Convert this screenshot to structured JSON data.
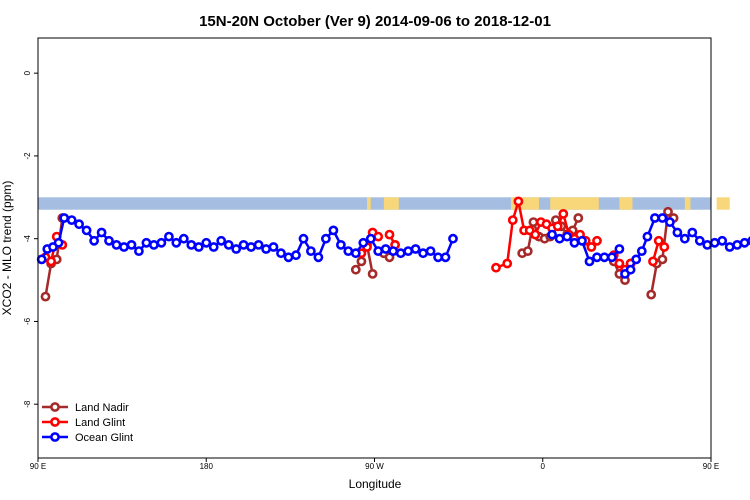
{
  "chart_data": {
    "type": "line",
    "title": "15N-20N October (Ver 9)   2014-09-06 to 2018-12-01",
    "xlabel": "Longitude",
    "ylabel": "XCO2 - MLO trend (ppm)",
    "xlim": [
      90,
      450
    ],
    "ylim": [
      -9.3,
      0.85
    ],
    "x_ticks": [
      {
        "value": 90,
        "label": "90 E"
      },
      {
        "value": 180,
        "label": "180"
      },
      {
        "value": 270,
        "label": "90 W"
      },
      {
        "value": 360,
        "label": "0"
      },
      {
        "value": 450,
        "label": "90 E"
      },
      {
        "value": 540,
        "label": "180"
      }
    ],
    "y_ticks": [
      {
        "value": 0,
        "label": "0"
      },
      {
        "value": -2,
        "label": "-2"
      },
      {
        "value": -4,
        "label": "-4"
      },
      {
        "value": -6,
        "label": "-6"
      },
      {
        "value": -8,
        "label": "-8"
      }
    ],
    "grid": false,
    "legend_position": "bottom-left",
    "map_strip": {
      "y_range": [
        -3.3,
        -3.0
      ],
      "ocean_color": "#a5bde0",
      "land_color": "#f7d77a",
      "land_spans": [
        [
          266,
          268
        ],
        [
          275,
          283
        ],
        [
          343,
          358
        ],
        [
          364,
          390
        ],
        [
          401,
          408
        ],
        [
          436,
          439
        ],
        [
          453,
          460
        ]
      ]
    },
    "series": [
      {
        "name": "Land Nadir",
        "color": "#a52a2a",
        "segments": [
          [
            [
              94,
              -5.4
            ],
            [
              97,
              -4.6
            ],
            [
              100,
              -4.5
            ],
            [
              103,
              -3.5
            ]
          ],
          [
            [
              260,
              -4.75
            ],
            [
              263,
              -4.55
            ],
            [
              266,
              -4.15
            ],
            [
              269,
              -4.85
            ]
          ],
          [
            [
              275,
              -4.35
            ],
            [
              278,
              -4.45
            ]
          ],
          [
            [
              349,
              -4.35
            ],
            [
              352,
              -4.3
            ],
            [
              355,
              -3.6
            ],
            [
              358,
              -3.95
            ],
            [
              361,
              -4.0
            ],
            [
              364,
              -3.95
            ],
            [
              367,
              -3.55
            ],
            [
              370,
              -3.7
            ],
            [
              373,
              -3.9
            ],
            [
              376,
              -3.8
            ],
            [
              379,
              -3.5
            ]
          ],
          [
            [
              398,
              -4.55
            ],
            [
              401,
              -4.85
            ],
            [
              404,
              -5.0
            ],
            [
              407,
              -4.6
            ]
          ],
          [
            [
              418,
              -5.35
            ],
            [
              421,
              -4.6
            ],
            [
              424,
              -4.5
            ],
            [
              427,
              -3.35
            ],
            [
              430,
              -3.5
            ]
          ]
        ]
      },
      {
        "name": "Land Glint",
        "color": "#ff0000",
        "segments": [
          [
            [
              94,
              -4.45
            ],
            [
              97,
              -4.55
            ],
            [
              100,
              -3.95
            ],
            [
              103,
              -4.15
            ]
          ],
          [
            [
              263,
              -4.35
            ],
            [
              266,
              -4.2
            ],
            [
              269,
              -3.85
            ],
            [
              272,
              -3.95
            ]
          ],
          [
            [
              278,
              -3.9
            ],
            [
              281,
              -4.15
            ]
          ],
          [
            [
              335,
              -4.7
            ],
            [
              341,
              -4.6
            ],
            [
              344,
              -3.55
            ],
            [
              347,
              -3.1
            ],
            [
              350,
              -3.8
            ],
            [
              353,
              -3.8
            ],
            [
              356,
              -3.9
            ],
            [
              359,
              -3.6
            ],
            [
              362,
              -3.65
            ],
            [
              365,
              -3.75
            ],
            [
              368,
              -3.7
            ],
            [
              371,
              -3.4
            ],
            [
              374,
              -3.9
            ],
            [
              377,
              -4.0
            ],
            [
              380,
              -3.9
            ],
            [
              383,
              -4.05
            ],
            [
              386,
              -4.2
            ],
            [
              389,
              -4.05
            ]
          ],
          [
            [
              398,
              -4.4
            ],
            [
              401,
              -4.6
            ],
            [
              404,
              -4.75
            ],
            [
              407,
              -4.6
            ]
          ],
          [
            [
              419,
              -4.55
            ],
            [
              422,
              -4.05
            ],
            [
              425,
              -4.2
            ]
          ]
        ]
      },
      {
        "name": "Ocean Glint",
        "color": "#0000ff",
        "segments": [
          [
            [
              92,
              -4.5
            ],
            [
              95,
              -4.25
            ],
            [
              98,
              -4.2
            ],
            [
              101,
              -4.1
            ],
            [
              104,
              -3.5
            ],
            [
              108,
              -3.55
            ],
            [
              112,
              -3.65
            ],
            [
              116,
              -3.8
            ],
            [
              120,
              -4.05
            ],
            [
              124,
              -3.85
            ],
            [
              128,
              -4.05
            ],
            [
              132,
              -4.15
            ],
            [
              136,
              -4.2
            ],
            [
              140,
              -4.15
            ],
            [
              144,
              -4.3
            ],
            [
              148,
              -4.1
            ],
            [
              152,
              -4.15
            ],
            [
              156,
              -4.1
            ],
            [
              160,
              -3.95
            ],
            [
              164,
              -4.1
            ],
            [
              168,
              -4.0
            ],
            [
              172,
              -4.15
            ],
            [
              176,
              -4.2
            ],
            [
              180,
              -4.1
            ],
            [
              184,
              -4.2
            ],
            [
              188,
              -4.05
            ],
            [
              192,
              -4.15
            ],
            [
              196,
              -4.25
            ],
            [
              200,
              -4.15
            ],
            [
              204,
              -4.2
            ],
            [
              208,
              -4.15
            ],
            [
              212,
              -4.25
            ],
            [
              216,
              -4.2
            ],
            [
              220,
              -4.35
            ],
            [
              224,
              -4.45
            ],
            [
              228,
              -4.4
            ],
            [
              232,
              -4.0
            ],
            [
              236,
              -4.3
            ],
            [
              240,
              -4.45
            ],
            [
              244,
              -4.0
            ],
            [
              248,
              -3.8
            ],
            [
              252,
              -4.15
            ],
            [
              256,
              -4.3
            ],
            [
              260,
              -4.35
            ],
            [
              264,
              -4.1
            ],
            [
              268,
              -4.0
            ],
            [
              272,
              -4.3
            ],
            [
              276,
              -4.25
            ],
            [
              280,
              -4.3
            ],
            [
              284,
              -4.35
            ],
            [
              288,
              -4.3
            ],
            [
              292,
              -4.25
            ],
            [
              296,
              -4.35
            ],
            [
              300,
              -4.3
            ],
            [
              304,
              -4.45
            ],
            [
              308,
              -4.45
            ],
            [
              312,
              -4.0
            ]
          ],
          [
            [
              365,
              -3.9
            ],
            [
              369,
              -4.0
            ],
            [
              373,
              -3.95
            ],
            [
              377,
              -4.1
            ],
            [
              381,
              -4.05
            ],
            [
              385,
              -4.55
            ],
            [
              389,
              -4.45
            ],
            [
              393,
              -4.45
            ],
            [
              397,
              -4.45
            ],
            [
              401,
              -4.25
            ]
          ],
          [
            [
              404,
              -4.85
            ],
            [
              407,
              -4.75
            ],
            [
              410,
              -4.5
            ],
            [
              413,
              -4.3
            ],
            [
              416,
              -3.95
            ],
            [
              420,
              -3.5
            ],
            [
              424,
              -3.5
            ],
            [
              428,
              -3.6
            ],
            [
              432,
              -3.85
            ],
            [
              436,
              -4.0
            ],
            [
              440,
              -3.85
            ],
            [
              444,
              -4.05
            ],
            [
              448,
              -4.15
            ],
            [
              452,
              -4.1
            ],
            [
              456,
              -4.05
            ],
            [
              460,
              -4.2
            ],
            [
              464,
              -4.15
            ],
            [
              468,
              -4.1
            ],
            [
              472,
              -4.05
            ],
            [
              476,
              -4.0
            ]
          ]
        ]
      }
    ]
  }
}
